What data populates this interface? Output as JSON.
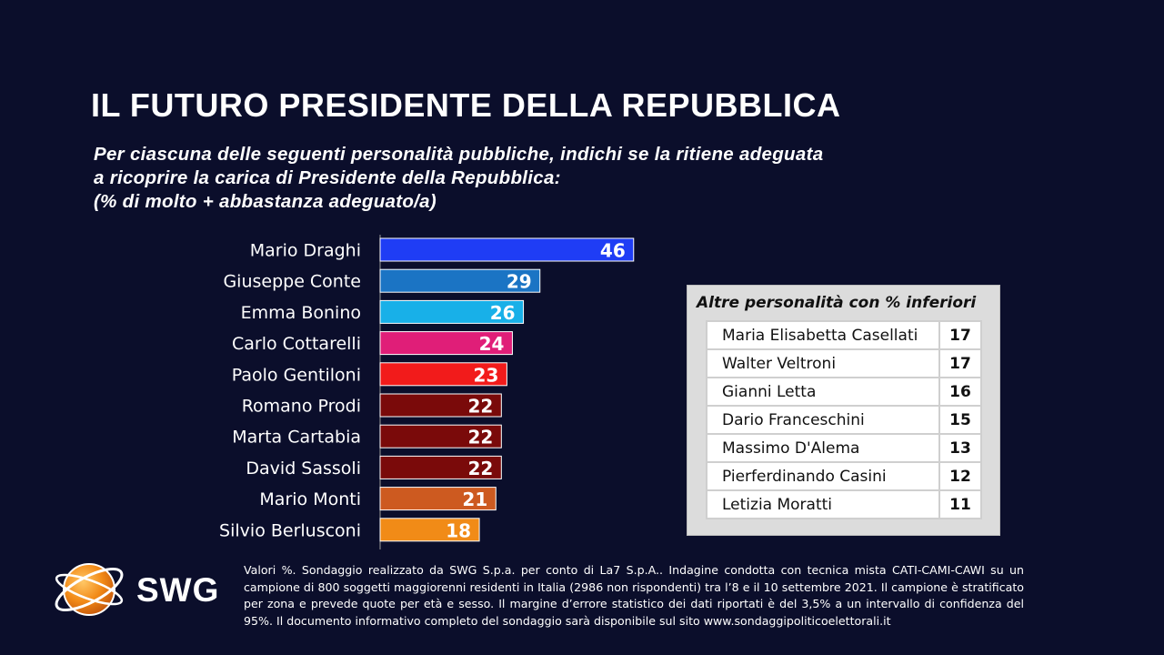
{
  "title": "IL FUTURO PRESIDENTE DELLA REPUBBLICA",
  "subtitle_lines": [
    "Per ciascuna delle seguenti personalità pubbliche, indichi se la ritiene adeguata",
    "a ricoprire la carica di Presidente della Repubblica:",
    "(% di molto + abbastanza adeguato/a)"
  ],
  "chart_data": {
    "type": "bar",
    "orientation": "horizontal",
    "categories": [
      "Mario Draghi",
      "Giuseppe Conte",
      "Emma Bonino",
      "Carlo Cottarelli",
      "Paolo Gentiloni",
      "Romano Prodi",
      "Marta Cartabia",
      "David Sassoli",
      "Mario Monti",
      "Silvio Berlusconi"
    ],
    "values": [
      46,
      29,
      26,
      24,
      23,
      22,
      22,
      22,
      21,
      18
    ],
    "colors": [
      "#1f3df5",
      "#1b74c4",
      "#18b0e8",
      "#e01e78",
      "#f21b1b",
      "#7a0a0a",
      "#7a0a0a",
      "#7a0a0a",
      "#cd5a20",
      "#f18b17"
    ],
    "data_labels": "inside-end",
    "grid": false,
    "legend": "none"
  },
  "others": {
    "title": "Altre personalità con % inferiori",
    "rows": [
      {
        "name": "Maria Elisabetta Casellati",
        "value": "17"
      },
      {
        "name": "Walter Veltroni",
        "value": "17"
      },
      {
        "name": "Gianni Letta",
        "value": "16"
      },
      {
        "name": "Dario Franceschini",
        "value": "15"
      },
      {
        "name": "Massimo D'Alema",
        "value": "13"
      },
      {
        "name": "Pierferdinando Casini",
        "value": "12"
      },
      {
        "name": "Letizia Moratti",
        "value": "11"
      }
    ]
  },
  "logo": {
    "text": "SWG",
    "icon": "globe-logo-icon",
    "accent": "#f28a17"
  },
  "footnote": "Valori %. Sondaggio realizzato da SWG S.p.a. per conto di La7 S.p.A.. Indagine condotta con tecnica mista CATI-CAMI-CAWI su un campione di 800 soggetti maggiorenni residenti in Italia (2986 non rispondenti) tra l’8 e il 10 settembre 2021. Il campione è stratificato per zona e prevede quote per età e sesso. Il margine d’errore statistico dei dati riportati è del 3,5% a un intervallo di confidenza del 95%. Il documento informativo completo del sondaggio sarà disponibile sul sito www.sondaggipoliticoelettorali.it"
}
